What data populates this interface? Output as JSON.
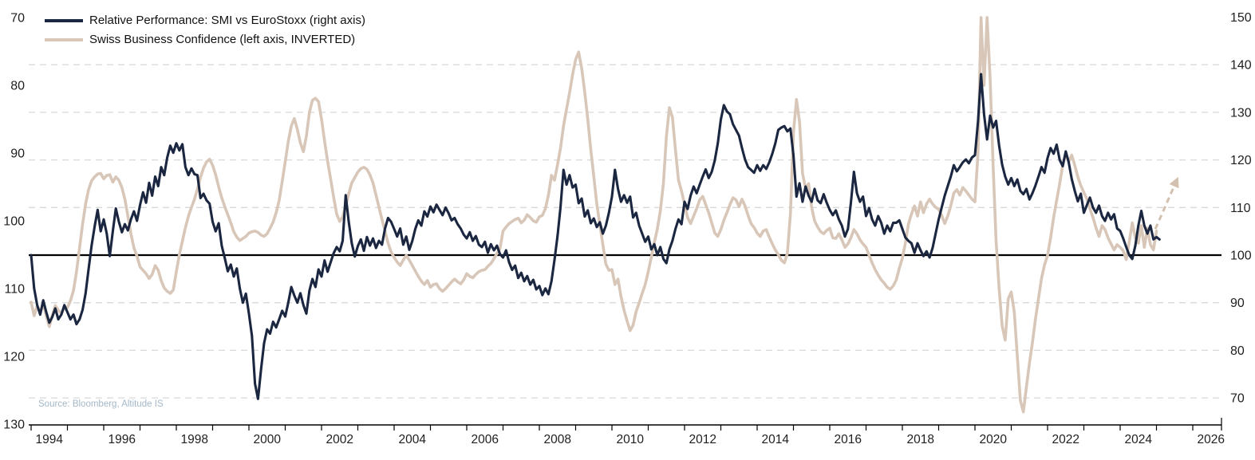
{
  "legend": {
    "items": [
      {
        "label": "Relative Performance: SMI vs EuroStoxx (right axis)",
        "color": "#1b2740"
      },
      {
        "label": "Swiss Business Confidence (left axis, INVERTED)",
        "color": "#d8c7b8"
      }
    ]
  },
  "source": {
    "text": "Source: Bloomberg, Altitude IS",
    "color": "#a4b8c8"
  },
  "colors": {
    "navy": "#1b2740",
    "beige": "#d8c7b8",
    "arrow": "#d3c1b0",
    "gridline": "#d9d9d9",
    "baseline": "#000000",
    "axis": "#000000",
    "label": "#1f1f1f"
  },
  "chart_data": {
    "type": "line",
    "x_axis": {
      "tick_years_start": 1994,
      "tick_years_end": 2026,
      "labels": [
        1994,
        1996,
        1998,
        2000,
        2002,
        2004,
        2006,
        2008,
        2010,
        2012,
        2014,
        2016,
        2018,
        2020,
        2022,
        2024,
        2026
      ]
    },
    "left_axis": {
      "title": "Swiss Business Confidence (inverted)",
      "ticks": [
        70,
        80,
        90,
        100,
        110,
        120,
        130
      ],
      "inverted": true,
      "range": [
        70,
        130
      ]
    },
    "right_axis": {
      "title": "Relative Performance SMI vs EuroStoxx",
      "ticks": [
        150,
        140,
        130,
        120,
        110,
        100,
        90,
        80,
        70
      ],
      "range": [
        70,
        150
      ]
    },
    "gridlines_right_values": [
      140,
      130,
      120,
      110,
      90,
      80,
      70
    ],
    "baseline_right_value": 100,
    "series": [
      {
        "name": "Relative Performance: SMI vs EuroStoxx (right axis)",
        "axis": "right",
        "color": "#1b2740",
        "width": 3.1,
        "start_year": 1994,
        "step_months": 1,
        "values": [
          100,
          93,
          89.5,
          87.5,
          90.5,
          88,
          85.8,
          87,
          88.8,
          86.5,
          87.5,
          89.5,
          88,
          86.5,
          87.5,
          85.5,
          86.5,
          88.5,
          92,
          97,
          102,
          106,
          109.5,
          105,
          107.5,
          104.5,
          99.8,
          105,
          109.8,
          107,
          104.8,
          106.5,
          105.2,
          107.5,
          109.2,
          107.2,
          110.5,
          113.2,
          111,
          115.2,
          112.5,
          116.5,
          114.5,
          118.5,
          116.8,
          120.5,
          123,
          121.5,
          123.5,
          122,
          123.3,
          118.5,
          116.8,
          118.2,
          117,
          116.8,
          112,
          112.9,
          111.5,
          110.8,
          107,
          105,
          106.7,
          102,
          99.4,
          96.6,
          98,
          95.5,
          97.2,
          93,
          90,
          91.9,
          87.7,
          83,
          73,
          69.8,
          76,
          81.5,
          84.4,
          83.5,
          86,
          84.8,
          86.5,
          88.3,
          87.1,
          90,
          93.3,
          91.5,
          90,
          92,
          89.5,
          87.7,
          92.5,
          95,
          93.3,
          97,
          95.5,
          98.9,
          96.5,
          98.5,
          100.4,
          101.7,
          100.8,
          103,
          112.6,
          107,
          102.5,
          99.7,
          101.9,
          103.3,
          100.9,
          103.8,
          102,
          103.5,
          101.5,
          103,
          102.2,
          105.6,
          107.8,
          107,
          105.5,
          103.9,
          105.6,
          102.2,
          103.9,
          101.1,
          103,
          105.5,
          107.3,
          106.2,
          109.2,
          108.1,
          110.2,
          109,
          110.6,
          109.5,
          108.4,
          110,
          108.8,
          107.3,
          107.8,
          106.5,
          105.6,
          104.3,
          103.5,
          104.8,
          103,
          104,
          102.2,
          101.7,
          102.8,
          100.5,
          102.3,
          101,
          102,
          100.2,
          99.5,
          101,
          98.5,
          96.9,
          97.8,
          95.2,
          96.3,
          94.5,
          95.6,
          93.8,
          94.8,
          92.8,
          93.5,
          91.6,
          93,
          91.8,
          94.5,
          99,
          104,
          110,
          117.9,
          114.8,
          116.8,
          114.2,
          114.8,
          110.9,
          111.9,
          108.1,
          109.4,
          106.7,
          107.7,
          105.9,
          106.9,
          104.5,
          106.2,
          108.9,
          112.3,
          117.9,
          113.9,
          111.2,
          112.6,
          111,
          112.3,
          107.9,
          108.9,
          106.2,
          104.5,
          102.8,
          103.9,
          101.2,
          102.3,
          100,
          101.7,
          99.2,
          98.3,
          101.2,
          103,
          105.5,
          107.5,
          106.5,
          111.2,
          109.7,
          112.5,
          114.4,
          113,
          114.8,
          116.5,
          118,
          116.2,
          117.5,
          119.9,
          123.5,
          128.5,
          131.5,
          130.2,
          129.6,
          127.5,
          126.3,
          125.1,
          122.5,
          120.1,
          118.5,
          117.9,
          117.3,
          118.9,
          117.7,
          118.9,
          118.1,
          119.5,
          121.3,
          123.5,
          126.3,
          126.8,
          127.1,
          126,
          126.6,
          121,
          112.3,
          115.1,
          111.2,
          114.4,
          112.5,
          111.2,
          113.9,
          111.5,
          110.9,
          112.8,
          111,
          109.5,
          108.4,
          109.4,
          107.5,
          106.2,
          103.9,
          105.5,
          111,
          117.5,
          113,
          111.2,
          112.3,
          108.2,
          109.9,
          107.5,
          106.2,
          108.2,
          106.8,
          104.5,
          106.2,
          105,
          106.8,
          106.8,
          107.3,
          105.5,
          103.7,
          103,
          102.5,
          100.5,
          102.5,
          101,
          99.8,
          100.8,
          99.5,
          101.5,
          104.5,
          107.5,
          110,
          112.5,
          114.5,
          116.5,
          118.9,
          117.6,
          118.5,
          119.5,
          120.1,
          119.3,
          120.5,
          121,
          128,
          138,
          129.6,
          124.3,
          129.3,
          126.8,
          128.2,
          123,
          119,
          116.5,
          114.8,
          116.2,
          114.5,
          115.9,
          113.5,
          112.8,
          113.9,
          111.7,
          113,
          114.6,
          116.5,
          118.5,
          117.3,
          120.4,
          122.5,
          121.3,
          123.2,
          120,
          118.7,
          121.8,
          119.5,
          116,
          113.5,
          111.3,
          112.9,
          108.9,
          110.5,
          112.1,
          110,
          108.9,
          110.4,
          108.2,
          107.2,
          108.9,
          107.5,
          108.6,
          105.6,
          105.1,
          103.5,
          101.7,
          100,
          99.2,
          102,
          106.2,
          109.3,
          106.2,
          104.5,
          106.2,
          103.3,
          103.8,
          103.3
        ]
      },
      {
        "name": "Swiss Business Confidence (left axis, INVERTED)",
        "axis": "left",
        "color": "#d8c7b8",
        "width": 3.6,
        "start_year": 1994,
        "step_months": 1,
        "values": [
          112,
          114,
          112.5,
          113.6,
          112.2,
          114,
          115.6,
          114,
          112.5,
          113.2,
          113.6,
          112.9,
          112.8,
          111.8,
          110.3,
          107.5,
          104,
          100.5,
          97.5,
          95.4,
          94.1,
          93.5,
          93.1,
          93,
          93.8,
          93.3,
          93.2,
          94.3,
          93.5,
          94,
          95.1,
          96.8,
          99.3,
          101.9,
          104,
          105.2,
          106.8,
          107.3,
          107.8,
          108.5,
          107.9,
          106.6,
          107.3,
          108.8,
          109.9,
          110.4,
          110.7,
          110.2,
          107.5,
          105,
          103,
          101,
          99.3,
          98,
          96.8,
          95.3,
          93.6,
          92.2,
          91.3,
          90.9,
          91.8,
          93.2,
          95,
          96.6,
          97.9,
          99.1,
          100.3,
          101.6,
          102.4,
          102.9,
          102.6,
          102.3,
          101.8,
          101.6,
          101.5,
          101.7,
          102.1,
          102.3,
          101.9,
          101.1,
          100.2,
          98.8,
          97,
          94.2,
          91.3,
          88.3,
          86,
          84.9,
          86.5,
          88.5,
          89.8,
          87.5,
          84,
          82.2,
          81.9,
          82.4,
          85,
          88.2,
          91.2,
          93.8,
          96.5,
          99,
          100.1,
          99.4,
          97.8,
          96,
          94.4,
          93.6,
          92.8,
          92.3,
          92.1,
          92.4,
          93.2,
          94.4,
          96.2,
          98,
          99.8,
          101.5,
          103.3,
          104.6,
          105.4,
          106.1,
          106.6,
          105.8,
          105.1,
          105.8,
          106.6,
          107.4,
          108.2,
          108.9,
          109.4,
          108.8,
          109.8,
          109.4,
          109.3,
          110,
          110.4,
          110,
          109.5,
          109,
          108.6,
          109,
          109.3,
          108.7,
          107.8,
          108.2,
          108.4,
          107.9,
          107.5,
          107.3,
          107.2,
          106.7,
          106.3,
          105.6,
          104.8,
          104.1,
          101.5,
          100.9,
          100.4,
          100.1,
          99.8,
          99.6,
          100.3,
          99.9,
          99.1,
          99.5,
          100,
          100.2,
          99.4,
          99.2,
          98.2,
          96.2,
          93.3,
          94,
          91.7,
          89.3,
          86,
          83.5,
          81.1,
          78.4,
          76.2,
          75.1,
          77.5,
          81,
          85,
          89.5,
          93.5,
          97.5,
          100.5,
          103.5,
          106.4,
          107.3,
          107.2,
          109.4,
          108.6,
          111.2,
          113.2,
          114.8,
          116.2,
          115.4,
          113.4,
          112.1,
          110.7,
          109.4,
          107.5,
          105.4,
          103.2,
          101.2,
          98.5,
          94.5,
          87.5,
          83.3,
          84.7,
          89.5,
          94,
          95.6,
          97.5,
          99.5,
          100.4,
          99.3,
          98.2,
          96.9,
          96.4,
          97.6,
          98.8,
          100.3,
          101.8,
          102.3,
          101.3,
          99.9,
          98.8,
          97.6,
          96.6,
          96.9,
          97.9,
          96.8,
          97.8,
          99.2,
          100.4,
          101,
          101.8,
          102.3,
          101.5,
          101.3,
          102.4,
          103.4,
          104.3,
          105,
          105.8,
          106.2,
          104.8,
          99,
          87,
          82.1,
          85.4,
          93,
          95.2,
          94.5,
          98,
          100,
          100.9,
          101.6,
          101.9,
          101.4,
          101.1,
          102.5,
          102.6,
          101.9,
          102.8,
          103.9,
          103.4,
          102.5,
          101.3,
          101.9,
          102.8,
          103.4,
          103.9,
          105.1,
          106.2,
          107.2,
          108,
          108.7,
          109.2,
          109.8,
          110.1,
          109.6,
          108.7,
          107,
          105.5,
          103.3,
          100.5,
          99,
          97.8,
          99.3,
          97.2,
          98.8,
          97.5,
          96.8,
          97.5,
          98,
          98.3,
          99.2,
          100.4,
          99.3,
          97.8,
          95.9,
          95.4,
          96.2,
          95.1,
          95.6,
          96.2,
          96.8,
          97.2,
          90,
          70,
          80,
          70,
          79,
          92,
          103,
          110,
          115.5,
          117.6,
          111.5,
          110.5,
          113.5,
          120,
          126.5,
          128.2,
          124.5,
          121,
          118,
          114.5,
          111.5,
          108.5,
          106.5,
          105.1,
          102.5,
          99.5,
          97,
          94.5,
          91.8,
          90,
          91.3,
          90.3,
          91.8,
          93.5,
          94.8,
          95.8,
          96.8,
          98.2,
          99.5,
          101,
          102.3,
          100.7,
          101.3,
          102.5,
          103.4,
          104.3,
          103.5,
          103.9,
          104.4,
          105.7,
          103.1,
          100.3,
          102.5,
          103.3,
          100.7,
          103.9,
          101.1,
          103.5,
          104.3,
          101.5
        ]
      }
    ],
    "forecast_arrow": {
      "axis": "left",
      "from": [
        2024.97,
        101.2
      ],
      "to": [
        2025.6,
        93.5
      ],
      "color": "#d3c1b0",
      "style": "dashed"
    }
  }
}
